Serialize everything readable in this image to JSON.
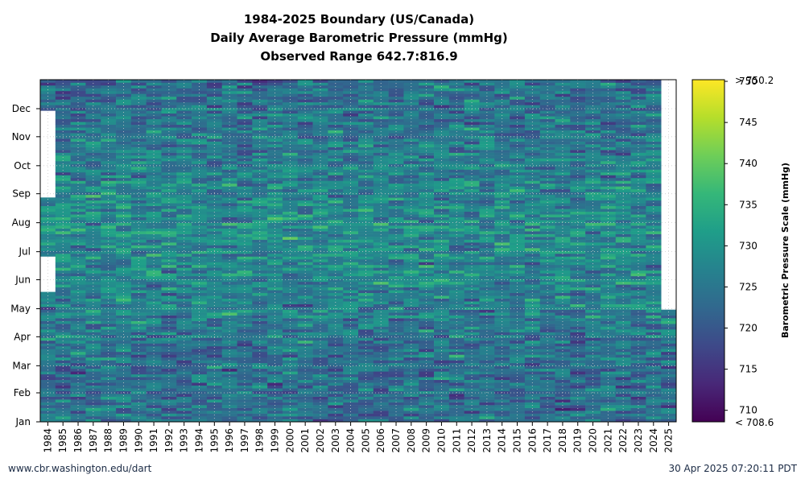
{
  "chart_data": {
    "type": "heatmap",
    "title_lines": [
      "1984-2025 Boundary (US/Canada)",
      "Daily Average Barometric Pressure (mmHg)",
      "Observed Range 642.7:816.9"
    ],
    "x_categories": [
      "1984",
      "1985",
      "1986",
      "1987",
      "1988",
      "1989",
      "1990",
      "1991",
      "1992",
      "1993",
      "1994",
      "1995",
      "1996",
      "1997",
      "1998",
      "1999",
      "2000",
      "2001",
      "2002",
      "2003",
      "2004",
      "2005",
      "2006",
      "2007",
      "2008",
      "2009",
      "2010",
      "2011",
      "2012",
      "2013",
      "2014",
      "2015",
      "2016",
      "2017",
      "2018",
      "2019",
      "2020",
      "2021",
      "2022",
      "2023",
      "2024",
      "2025"
    ],
    "y_labels": [
      "Jan",
      "Feb",
      "Mar",
      "Apr",
      "May",
      "Jun",
      "Jul",
      "Aug",
      "Sep",
      "Oct",
      "Nov",
      "Dec"
    ],
    "colorbar": {
      "label": "Barometric Pressure Scale (mmHg)",
      "min": 708.6,
      "max": 750.2,
      "ticks": [
        710,
        715,
        720,
        725,
        730,
        735,
        740,
        745,
        750
      ],
      "min_label": "< 708.6",
      "max_label": "> 750.2",
      "colormap": "viridis"
    },
    "grid": "dotted",
    "coverage": [
      {
        "year": "1984",
        "segments": [
          [
            1,
            139
          ],
          [
            178,
            240
          ],
          [
            334,
            366
          ]
        ]
      },
      {
        "year": "1985",
        "segments": [
          [
            1,
            366
          ]
        ]
      },
      {
        "year": "1986",
        "segments": [
          [
            1,
            366
          ]
        ]
      },
      {
        "year": "1987",
        "segments": [
          [
            1,
            366
          ]
        ]
      },
      {
        "year": "1988",
        "segments": [
          [
            1,
            366
          ]
        ]
      },
      {
        "year": "1989",
        "segments": [
          [
            1,
            366
          ]
        ]
      },
      {
        "year": "1990",
        "segments": [
          [
            1,
            366
          ]
        ]
      },
      {
        "year": "1991",
        "segments": [
          [
            1,
            366
          ]
        ]
      },
      {
        "year": "1992",
        "segments": [
          [
            1,
            366
          ]
        ]
      },
      {
        "year": "1993",
        "segments": [
          [
            1,
            366
          ]
        ]
      },
      {
        "year": "1994",
        "segments": [
          [
            1,
            366
          ]
        ]
      },
      {
        "year": "1995",
        "segments": [
          [
            1,
            366
          ]
        ]
      },
      {
        "year": "1996",
        "segments": [
          [
            1,
            366
          ]
        ]
      },
      {
        "year": "1997",
        "segments": [
          [
            1,
            366
          ]
        ]
      },
      {
        "year": "1998",
        "segments": [
          [
            1,
            366
          ]
        ]
      },
      {
        "year": "1999",
        "segments": [
          [
            1,
            366
          ]
        ]
      },
      {
        "year": "2000",
        "segments": [
          [
            1,
            366
          ]
        ]
      },
      {
        "year": "2001",
        "segments": [
          [
            1,
            366
          ]
        ]
      },
      {
        "year": "2002",
        "segments": [
          [
            1,
            366
          ]
        ]
      },
      {
        "year": "2003",
        "segments": [
          [
            1,
            366
          ]
        ]
      },
      {
        "year": "2004",
        "segments": [
          [
            1,
            366
          ]
        ]
      },
      {
        "year": "2005",
        "segments": [
          [
            1,
            366
          ]
        ]
      },
      {
        "year": "2006",
        "segments": [
          [
            1,
            366
          ]
        ]
      },
      {
        "year": "2007",
        "segments": [
          [
            1,
            366
          ]
        ]
      },
      {
        "year": "2008",
        "segments": [
          [
            1,
            366
          ]
        ]
      },
      {
        "year": "2009",
        "segments": [
          [
            1,
            366
          ]
        ]
      },
      {
        "year": "2010",
        "segments": [
          [
            1,
            366
          ]
        ]
      },
      {
        "year": "2011",
        "segments": [
          [
            1,
            366
          ]
        ]
      },
      {
        "year": "2012",
        "segments": [
          [
            1,
            366
          ]
        ]
      },
      {
        "year": "2013",
        "segments": [
          [
            1,
            366
          ]
        ]
      },
      {
        "year": "2014",
        "segments": [
          [
            1,
            366
          ]
        ]
      },
      {
        "year": "2015",
        "segments": [
          [
            1,
            366
          ]
        ]
      },
      {
        "year": "2016",
        "segments": [
          [
            1,
            366
          ]
        ]
      },
      {
        "year": "2017",
        "segments": [
          [
            1,
            366
          ]
        ]
      },
      {
        "year": "2018",
        "segments": [
          [
            1,
            366
          ]
        ]
      },
      {
        "year": "2019",
        "segments": [
          [
            1,
            366
          ]
        ]
      },
      {
        "year": "2020",
        "segments": [
          [
            1,
            366
          ]
        ]
      },
      {
        "year": "2021",
        "segments": [
          [
            1,
            366
          ]
        ]
      },
      {
        "year": "2022",
        "segments": [
          [
            1,
            366
          ]
        ]
      },
      {
        "year": "2023",
        "segments": [
          [
            1,
            366
          ]
        ]
      },
      {
        "year": "2024",
        "segments": [
          [
            1,
            366
          ]
        ]
      },
      {
        "year": "2025",
        "segments": [
          [
            1,
            120
          ]
        ]
      }
    ]
  },
  "footer": {
    "left": "www.cbr.washington.edu/dart",
    "right": "30 Apr 2025 07:20:11 PDT"
  }
}
